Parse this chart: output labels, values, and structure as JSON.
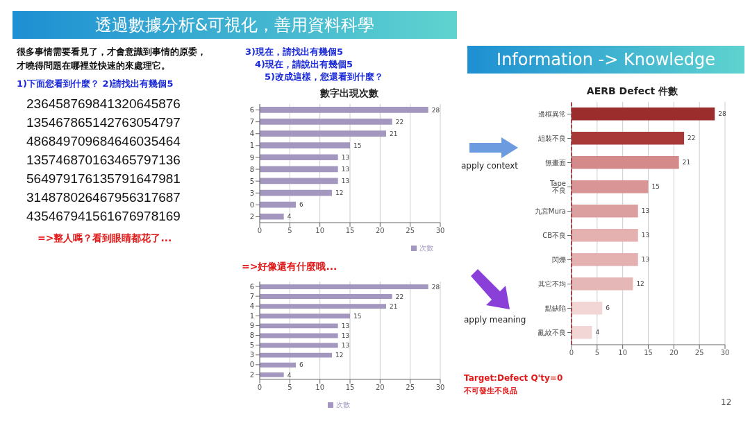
{
  "chart_data": [
    {
      "type": "bar",
      "orientation": "horizontal",
      "title": "數字出現次數",
      "categories": [
        "6",
        "7",
        "4",
        "1",
        "9",
        "8",
        "5",
        "3",
        "0",
        "2"
      ],
      "series": [
        {
          "name": "次數",
          "color": "#a497bf",
          "values": [
            28,
            22,
            21,
            15,
            13,
            13,
            13,
            12,
            6,
            4
          ]
        }
      ],
      "xlim": [
        0,
        30
      ],
      "xticks": [
        0,
        5,
        10,
        15,
        20,
        25,
        30
      ],
      "grid": "x",
      "legend": "bottom right",
      "data_labels": true,
      "annotations": [
        "透過數據分析&可視化，善用資料科學",
        "很多事情需要看見了，才會意識到事情的原委，",
        "才曉得問題在哪裡並快速的來處理它。",
        "1)下面您看到什麼？ 2)請找出有幾個5",
        "236458769841320645876",
        "135467865142763054797",
        "486849709684646035464",
        "135746870163465797136",
        "564979176135791647981",
        "314878026467956317687",
        "435467941561676978169",
        "=>整人嗎？看到眼睛都花了...",
        "3)現在，請找出有幾個5",
        "4)現在，請說出有幾個5",
        "5)改成這樣，您還看到什麼？",
        "=>好像還有什麼哦..."
      ]
    },
    {
      "type": "bar",
      "orientation": "horizontal",
      "categories": [
        "6",
        "7",
        "4",
        "1",
        "9",
        "8",
        "5",
        "3",
        "0",
        "2"
      ],
      "series": [
        {
          "name": "次數",
          "color": "#a497bf",
          "values": [
            28,
            22,
            21,
            15,
            13,
            13,
            13,
            12,
            6,
            4
          ]
        }
      ],
      "xlim": [
        0,
        30
      ],
      "xticks": [
        0,
        5,
        10,
        15,
        20,
        25,
        30
      ],
      "grid": "x",
      "legend": "bottom",
      "data_labels": true
    },
    {
      "type": "bar",
      "orientation": "horizontal",
      "title": "AERB Defect 件數",
      "categories": [
        "邊框異常",
        "組裝不良",
        "無畫面",
        "Tape 不良",
        "九宮Mura",
        "CB不良",
        "閃爍",
        "其它不均",
        "點缺陷",
        "亂紋不良"
      ],
      "series": [
        {
          "colors": [
            "#9b2d2d",
            "#a83838",
            "#d48a8a",
            "#d99595",
            "#dc9f9f",
            "#e4b0b0",
            "#e4b0b0",
            "#e6b7b7",
            "#f2d6d6",
            "#f2d6d6"
          ],
          "values": [
            28,
            22,
            21,
            15,
            13,
            13,
            13,
            12,
            6,
            4
          ]
        }
      ],
      "xlim": [
        0,
        30
      ],
      "xticks": [
        0,
        5,
        10,
        15,
        20,
        25,
        30
      ],
      "grid": "x",
      "data_labels": true,
      "ref_lines": [
        {
          "axis": "x",
          "value": 0,
          "color": "#e02020",
          "line_style": "dashed"
        }
      ],
      "annotations": [
        "Information -> Knowledge",
        "apply context",
        "apply meaning",
        "Target:Defect Q'ty=0",
        "不可發生不良品",
        "12"
      ]
    }
  ]
}
